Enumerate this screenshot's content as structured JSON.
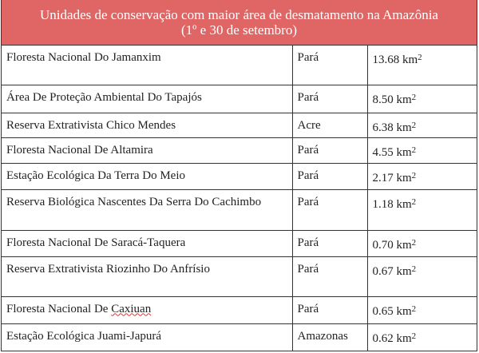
{
  "header": {
    "title_line1": "Unidades de conservação com maior área de desmatamento na Amazônia",
    "title_line2": "(1º e 30 de setembro)",
    "background_color": "#e06666"
  },
  "table": {
    "rows": [
      {
        "name": "Floresta Nacional Do Jamanxim",
        "state": "Pará",
        "area": "13.68 km",
        "unit_sup": "2"
      },
      {
        "name": "Área De Proteção Ambiental Do Tapajós",
        "state": "Pará",
        "area": "8.50 km",
        "unit_sup": "2"
      },
      {
        "name": "Reserva Extrativista Chico Mendes",
        "state": "Acre",
        "area": "6.38 km",
        "unit_sup": "2"
      },
      {
        "name": "Floresta Nacional De Altamira",
        "state": "Pará",
        "area": "4.55 km",
        "unit_sup": "2"
      },
      {
        "name": "Estação Ecológica Da Terra Do Meio",
        "state": "Pará",
        "area": "2.17 km",
        "unit_sup": "2"
      },
      {
        "name": "Reserva Biológica Nascentes Da Serra Do Cachimbo",
        "state": "Pará",
        "area": "1.18 km",
        "unit_sup": "2"
      },
      {
        "name": "Floresta Nacional De Saracá-Taquera",
        "state": "Pará",
        "area": "0.70 km",
        "unit_sup": "2"
      },
      {
        "name": "Reserva Extrativista Riozinho Do Anfrísio",
        "state": "Pará",
        "area": "0.67 km",
        "unit_sup": "2"
      },
      {
        "name_prefix": "Floresta Nacional De ",
        "name_misspelled": "Caxiuan",
        "state": "Pará",
        "area": "0.65 km",
        "unit_sup": "2"
      },
      {
        "name": "Estação Ecológica Juami-Japurá",
        "state": "Amazonas",
        "area": "0.62 km",
        "unit_sup": "2"
      }
    ]
  }
}
